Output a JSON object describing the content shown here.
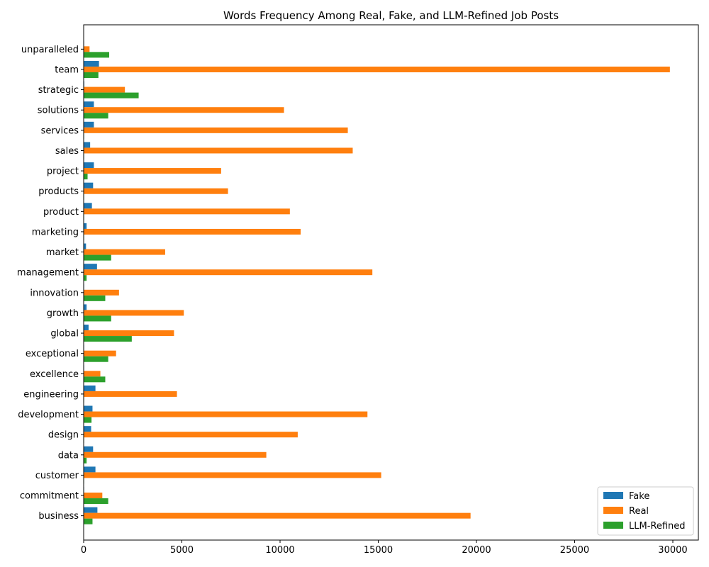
{
  "chart_data": {
    "type": "bar",
    "orientation": "horizontal",
    "title": "Words Frequency Among Real, Fake, and LLM-Refined Job Posts",
    "xlabel": "",
    "ylabel": "",
    "xlim": [
      0,
      31300
    ],
    "x_ticks": [
      0,
      5000,
      10000,
      15000,
      20000,
      25000,
      30000
    ],
    "categories": [
      "business",
      "commitment",
      "customer",
      "data",
      "design",
      "development",
      "engineering",
      "excellence",
      "exceptional",
      "global",
      "growth",
      "innovation",
      "management",
      "market",
      "marketing",
      "product",
      "products",
      "project",
      "sales",
      "services",
      "solutions",
      "strategic",
      "team",
      "unparalleled"
    ],
    "series": [
      {
        "name": "Fake",
        "color": "#1f77b4",
        "values": [
          700,
          20,
          600,
          480,
          380,
          450,
          600,
          20,
          20,
          250,
          150,
          20,
          680,
          120,
          150,
          420,
          480,
          520,
          330,
          520,
          520,
          30,
          780,
          20
        ]
      },
      {
        "name": "Real",
        "color": "#ff7f0e",
        "values": [
          19700,
          950,
          15150,
          9300,
          10900,
          14450,
          4750,
          850,
          1650,
          4600,
          5100,
          1800,
          14700,
          4150,
          11050,
          10500,
          7350,
          7000,
          13700,
          13450,
          10200,
          2100,
          29850,
          300
        ]
      },
      {
        "name": "LLM-Refined",
        "color": "#2ca02c",
        "values": [
          450,
          1250,
          20,
          150,
          20,
          400,
          20,
          1100,
          1250,
          2450,
          1400,
          1100,
          150,
          1400,
          20,
          20,
          20,
          200,
          20,
          20,
          1250,
          2800,
          750,
          1300
        ]
      }
    ],
    "legend_position": "bottom-right",
    "grid": false
  }
}
